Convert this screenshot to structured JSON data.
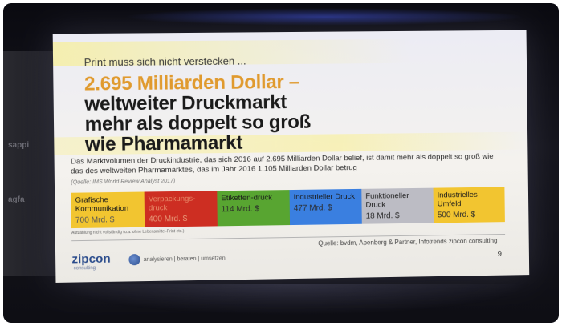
{
  "slide": {
    "kicker": "Print muss sich nicht verstecken ...",
    "headline": {
      "accent": "2.695 Milliarden Dollar –",
      "line1": "weltweiter Druckmarkt",
      "line2": "mehr als doppelt so groß",
      "line3": "wie Pharmamarkt"
    },
    "body": "Das Marktvolumen der Druckindustrie, das sich 2016 auf 2.695 Milliarden Dollar belief, ist damit mehr als doppelt so groß wie das des weltweiten Pharmamarktes, das im Jahr 2016 1.105 Milliarden Dollar betrug",
    "source_top": "(Quelle: IMS World Review Analyst 2017)",
    "segments": [
      {
        "label": "Grafische Kommunikation",
        "value": "700 Mrd. $",
        "color": "#f2c530"
      },
      {
        "label": "Verpackungs-druck",
        "value": "400 Mrd. $",
        "color": "#cd2e22"
      },
      {
        "label": "Etiketten-druck",
        "value": "114 Mrd. $",
        "color": "#58a531"
      },
      {
        "label": "Industrieller Druck",
        "value": "477 Mrd. $",
        "color": "#3a7fe0"
      },
      {
        "label": "Funktioneller Druck",
        "value": "18 Mrd. $",
        "color": "#bcbcc4"
      },
      {
        "label": "Industrielles Umfeld",
        "value": "500 Mrd. $",
        "color": "#f2c530"
      }
    ],
    "footnote": "Aufzählung nicht vollständig (u.a. ohne Lebensmittel-Print etc.)",
    "source_bottom": "Quelle: bvdm, Apenberg & Partner, Infotrends zipcon consulting",
    "logo": "zipcon",
    "logo_sub": "consulting",
    "tagline": "analysieren | beraten | umsetzen",
    "page_number": "9"
  },
  "room": {
    "wall_text_1": "sappi",
    "wall_text_2": "agfa"
  }
}
